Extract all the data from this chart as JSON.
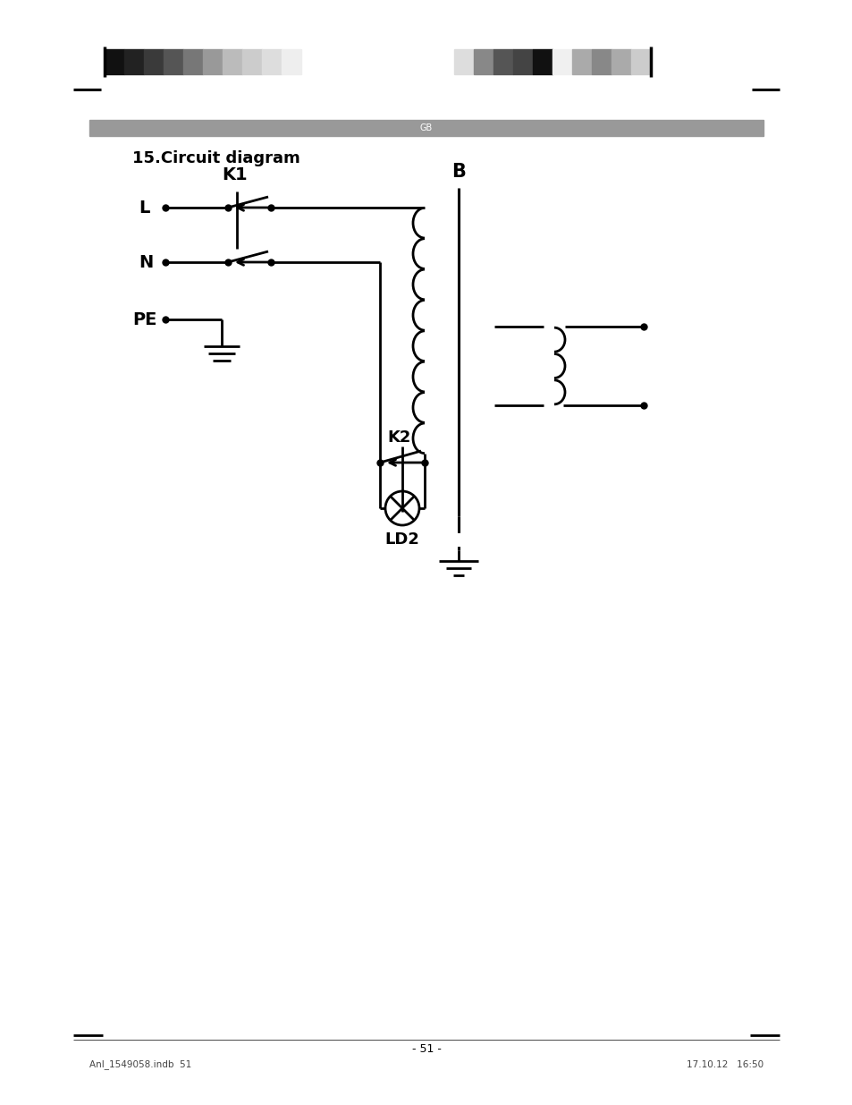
{
  "title": "15.Circuit diagram",
  "gb_label": "GB",
  "page_number": "- 51 -",
  "footer_left": "Anl_1549058.indb  51",
  "footer_right": "17.10.12   16:50",
  "bg_color": "#ffffff",
  "line_color": "#000000",
  "gb_bar_color": "#999999",
  "gb_text_color": "#ffffff",
  "bar_colors_left": [
    "#111111",
    "#222222",
    "#3a3a3a",
    "#555555",
    "#777777",
    "#999999",
    "#bbbbbb",
    "#cccccc",
    "#dddddd",
    "#eeeeee"
  ],
  "bar_colors_right": [
    "#dddddd",
    "#888888",
    "#555555",
    "#444444",
    "#111111",
    "#f0f0f0",
    "#aaaaaa",
    "#888888",
    "#aaaaaa",
    "#cccccc"
  ]
}
